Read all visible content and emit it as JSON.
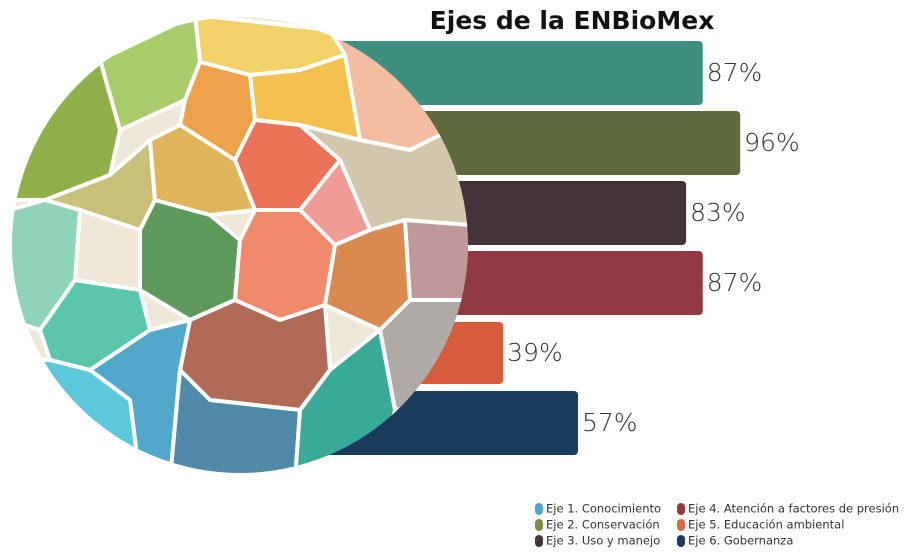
{
  "chart_data": {
    "type": "bar",
    "orientation": "horizontal",
    "title": "Ejes de la ENBioMex",
    "categories": [
      "Eje 1. Conocimiento",
      "Eje 2. Conservación",
      "Eje 3. Uso y manejo",
      "Eje 4. Atención a factores de presión",
      "Eje 5. Educación ambiental",
      "Eje 6. Gobernanza"
    ],
    "values": [
      87,
      96,
      83,
      87,
      39,
      57
    ],
    "value_labels": [
      "87%",
      "96%",
      "83%",
      "87%",
      "39%",
      "57%"
    ],
    "colors": [
      "#3e8f80",
      "#5f6a3f",
      "#43323a",
      "#923a41",
      "#d75b3d",
      "#1b3c5d"
    ],
    "legend_colors": [
      "#4aa9c5",
      "#7a8c46",
      "#43323a",
      "#923a41",
      "#e0684a",
      "#1b3c5d"
    ]
  }
}
